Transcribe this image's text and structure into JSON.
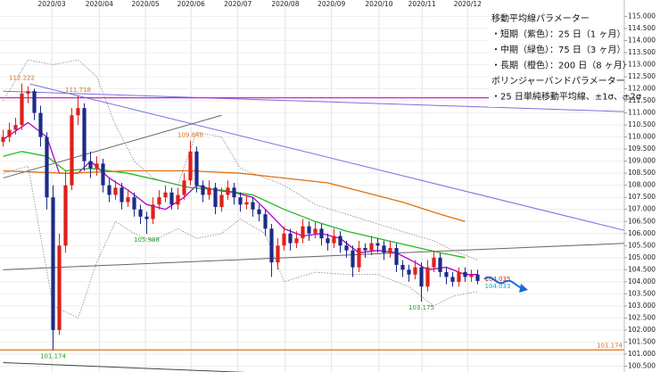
{
  "chart_data": {
    "type": "candlestick",
    "xlim": [
      -0.5,
      99.5
    ],
    "ylim": [
      100.26,
      115.68
    ],
    "grid": true,
    "up_color": "#e0201a",
    "down_color": "#1c2b86",
    "xticks": [
      {
        "value": 7.8,
        "label": "2020/03"
      },
      {
        "value": 15.4,
        "label": "2020/04"
      },
      {
        "value": 22.8,
        "label": "2020/05"
      },
      {
        "value": 30.1,
        "label": "2020/06"
      },
      {
        "value": 37.6,
        "label": "2020/07"
      },
      {
        "value": 45.2,
        "label": "2020/08"
      },
      {
        "value": 52.6,
        "label": "2020/09"
      },
      {
        "value": 60.2,
        "label": "2020/10"
      },
      {
        "value": 67.1,
        "label": "2020/11"
      },
      {
        "value": 74.4,
        "label": "2020/12"
      }
    ],
    "yticks": [
      {
        "value": 100.5,
        "label": "100.500"
      },
      {
        "value": 101,
        "label": "101.000"
      },
      {
        "value": 101.5,
        "label": "101.500"
      },
      {
        "value": 102,
        "label": "102.000"
      },
      {
        "value": 102.5,
        "label": "102.500"
      },
      {
        "value": 103,
        "label": "103.000"
      },
      {
        "value": 103.5,
        "label": "103.500"
      },
      {
        "value": 104,
        "label": "104.000"
      },
      {
        "value": 104.5,
        "label": "104.500"
      },
      {
        "value": 105,
        "label": "105.000"
      },
      {
        "value": 105.5,
        "label": "105.500"
      },
      {
        "value": 106,
        "label": "106.000"
      },
      {
        "value": 106.5,
        "label": "106.500"
      },
      {
        "value": 107,
        "label": "107.000"
      },
      {
        "value": 107.5,
        "label": "107.500"
      },
      {
        "value": 108,
        "label": "108.000"
      },
      {
        "value": 108.5,
        "label": "108.500"
      },
      {
        "value": 109,
        "label": "109.000"
      },
      {
        "value": 109.5,
        "label": "109.500"
      },
      {
        "value": 110,
        "label": "110.000"
      },
      {
        "value": 110.5,
        "label": "110.500"
      },
      {
        "value": 111,
        "label": "111.000"
      },
      {
        "value": 111.5,
        "label": "111.500"
      },
      {
        "value": 112,
        "label": "112.000"
      },
      {
        "value": 112.5,
        "label": "112.500"
      },
      {
        "value": 113,
        "label": "113.000"
      },
      {
        "value": 113.5,
        "label": "113.500"
      },
      {
        "value": 114,
        "label": "114.000"
      },
      {
        "value": 114.5,
        "label": "114.500"
      },
      {
        "value": 115,
        "label": "115.000"
      }
    ],
    "open": [
      109.8,
      110.0,
      110.3,
      110.5,
      111.8,
      111.9,
      111.0,
      110.0,
      107.5,
      102.0,
      105.5,
      108.0,
      110.9,
      111.2,
      109.0,
      108.7,
      108.9,
      108.0,
      107.6,
      107.9,
      107.3,
      107.5,
      107.0,
      106.7,
      106.6,
      107.2,
      107.5,
      107.7,
      107.2,
      107.6,
      108.2,
      109.4,
      108.0,
      107.6,
      107.9,
      107.1,
      107.6,
      107.9,
      107.5,
      107.2,
      107.3,
      107.0,
      106.8,
      106.2,
      104.8,
      105.5,
      106.0,
      105.6,
      105.8,
      106.3,
      106.0,
      106.2,
      105.8,
      105.6,
      105.9,
      105.5,
      105.3,
      104.6,
      105.4,
      105.3,
      105.6,
      105.5,
      105.2,
      105.4,
      104.7,
      104.5,
      104.3,
      104.6,
      103.8,
      104.6,
      105.0,
      104.4,
      104.2,
      104.0,
      104.4,
      104.2,
      104.3
    ],
    "high": [
      110.3,
      110.6,
      110.8,
      112.222,
      112.1,
      112.0,
      111.3,
      110.2,
      108.0,
      106.0,
      108.6,
      111.2,
      111.718,
      111.4,
      109.4,
      109.2,
      109.1,
      108.3,
      108.2,
      108.1,
      107.8,
      107.7,
      107.2,
      106.9,
      107.5,
      107.8,
      108.0,
      107.9,
      107.9,
      108.5,
      109.848,
      109.6,
      108.2,
      108.2,
      108.1,
      107.9,
      108.2,
      108.1,
      107.7,
      107.6,
      107.5,
      107.2,
      107.0,
      106.4,
      105.8,
      106.3,
      106.2,
      106.1,
      106.6,
      106.5,
      106.5,
      106.4,
      106.0,
      106.2,
      106.1,
      105.7,
      105.5,
      105.7,
      105.6,
      105.9,
      105.8,
      105.7,
      105.7,
      105.6,
      104.9,
      104.7,
      104.9,
      104.8,
      104.9,
      105.3,
      105.2,
      104.6,
      104.4,
      104.6,
      104.6,
      104.5,
      104.5
    ],
    "low": [
      109.6,
      109.8,
      110.1,
      110.3,
      111.4,
      110.7,
      109.6,
      107.0,
      101.174,
      101.8,
      105.2,
      107.8,
      110.5,
      108.6,
      108.3,
      108.4,
      107.7,
      107.3,
      107.4,
      107.0,
      107.1,
      106.7,
      106.4,
      105.988,
      106.4,
      107.0,
      107.3,
      107.0,
      107.0,
      107.4,
      108.0,
      107.7,
      107.3,
      107.4,
      106.8,
      106.9,
      107.4,
      107.2,
      106.9,
      107.0,
      106.7,
      106.5,
      105.9,
      104.2,
      104.5,
      105.3,
      105.3,
      105.4,
      105.6,
      105.7,
      105.8,
      105.5,
      105.3,
      105.4,
      105.2,
      105.0,
      104.2,
      104.4,
      105.0,
      105.1,
      105.2,
      104.9,
      105.0,
      104.4,
      104.2,
      104.0,
      104.1,
      103.175,
      103.6,
      104.4,
      104.2,
      103.9,
      103.8,
      103.8,
      104.0,
      104.0,
      103.9
    ],
    "close": [
      110.0,
      110.3,
      110.5,
      111.8,
      111.9,
      111.0,
      110.0,
      107.5,
      102.0,
      105.5,
      108.0,
      110.9,
      111.2,
      109.0,
      108.7,
      108.9,
      108.0,
      107.6,
      107.9,
      107.3,
      107.5,
      107.0,
      106.7,
      106.6,
      107.2,
      107.5,
      107.7,
      107.2,
      107.6,
      108.2,
      109.4,
      108.0,
      107.6,
      107.9,
      107.1,
      107.6,
      107.9,
      107.5,
      107.2,
      107.3,
      107.0,
      106.8,
      106.2,
      104.8,
      105.5,
      106.0,
      105.6,
      105.8,
      106.3,
      106.0,
      106.2,
      105.8,
      105.6,
      105.9,
      105.5,
      105.3,
      104.6,
      105.4,
      105.3,
      105.6,
      105.5,
      105.2,
      105.4,
      104.7,
      104.5,
      104.3,
      104.6,
      103.8,
      104.6,
      105.0,
      104.4,
      104.2,
      104.0,
      104.4,
      104.2,
      104.3,
      104.035
    ],
    "series": [
      {
        "color": "#b000d0",
        "dash": "none",
        "x": [
          0,
          4,
          7,
          9,
          12,
          14,
          17,
          20,
          23,
          26,
          29,
          31,
          34,
          37,
          40,
          42,
          45,
          48,
          51,
          54,
          57,
          60,
          63,
          66,
          68,
          71,
          74,
          76
        ],
        "values": [
          109.9,
          110.6,
          110.0,
          108.5,
          108.5,
          109.0,
          108.3,
          107.8,
          107.2,
          107.0,
          107.5,
          108.0,
          107.8,
          107.7,
          107.5,
          107.0,
          106.2,
          105.9,
          106.0,
          105.8,
          105.2,
          105.3,
          105.2,
          104.8,
          104.5,
          104.6,
          104.3,
          104.3
        ]
      },
      {
        "color": "#22bb22",
        "dash": "none",
        "x": [
          0,
          3,
          7,
          10,
          14,
          20,
          25,
          30,
          35,
          40,
          45,
          50,
          55,
          60,
          65,
          70,
          74
        ],
        "values": [
          109.2,
          109.4,
          109.2,
          108.6,
          108.7,
          108.5,
          108.2,
          107.9,
          107.8,
          107.6,
          107.0,
          106.5,
          106.1,
          105.8,
          105.5,
          105.2,
          105.0
        ]
      },
      {
        "color": "#e07010",
        "dash": "none",
        "x": [
          0,
          10,
          20,
          30,
          38,
          45,
          52,
          58,
          64,
          70,
          74
        ],
        "values": [
          108.6,
          108.5,
          108.6,
          108.6,
          108.5,
          108.3,
          108.1,
          107.7,
          107.3,
          106.8,
          106.5
        ]
      },
      {
        "color": "#888888",
        "dash": "1.5 1.5",
        "x": [
          0,
          4,
          8,
          12,
          15,
          18,
          21,
          24,
          28,
          31,
          35,
          38,
          42,
          45,
          50,
          55,
          60,
          65,
          69,
          72,
          76
        ],
        "values": [
          111.5,
          113.2,
          113.0,
          113.2,
          112.5,
          110.5,
          109.0,
          108.3,
          108.0,
          110.2,
          110.0,
          108.7,
          108.3,
          108.0,
          107.2,
          106.8,
          106.4,
          106.0,
          105.7,
          105.3,
          104.9
        ]
      },
      {
        "color": "#888888",
        "dash": "1.5 1.5",
        "x": [
          0,
          4,
          8,
          12,
          15,
          18,
          21,
          24,
          28,
          31,
          35,
          38,
          42,
          45,
          50,
          55,
          60,
          65,
          69,
          72,
          76
        ],
        "values": [
          108.5,
          108.8,
          103.0,
          102.5,
          104.8,
          106.5,
          106.0,
          105.7,
          106.2,
          105.8,
          106.0,
          106.6,
          106.0,
          104.0,
          104.4,
          104.3,
          104.3,
          103.8,
          103.0,
          103.4,
          103.6
        ]
      }
    ],
    "trendlines": [
      {
        "color": "#7b6fe0",
        "points": [
          [
            4.3,
            112.2
          ],
          [
            100,
            106.1
          ]
        ]
      },
      {
        "color": "#7b6fe0",
        "points": [
          [
            0,
            111.9
          ],
          [
            100,
            111.05
          ]
        ]
      },
      {
        "color": "#666666",
        "points": [
          [
            0,
            108.3
          ],
          [
            35,
            110.9
          ]
        ]
      },
      {
        "color": "#666666",
        "points": [
          [
            0,
            104.5
          ],
          [
            100,
            105.6
          ]
        ]
      },
      {
        "color": "#444444",
        "points": [
          [
            0,
            100.65
          ],
          [
            43,
            100.2
          ]
        ]
      }
    ],
    "hlines": [
      {
        "value": 111.626,
        "label": "111.626",
        "color": "#d020d0"
      },
      {
        "value": 101.174,
        "label": "101.174",
        "color": "#e07010"
      }
    ],
    "annotations": [
      {
        "x": 3,
        "value": 112.222,
        "label": "112.222",
        "color": "#e07010"
      },
      {
        "x": 12,
        "value": 111.718,
        "label": "111.718",
        "color": "#e07010"
      },
      {
        "x": 30,
        "value": 109.848,
        "label": "109.848",
        "color": "#e07010"
      },
      {
        "x": 23,
        "value": 105.988,
        "label": "105.988",
        "color": "#22a022"
      },
      {
        "x": 8,
        "value": 101.174,
        "label": "101.174",
        "color": "#22a022"
      },
      {
        "x": 67,
        "value": 103.175,
        "label": "103.175",
        "color": "#22a022"
      },
      {
        "x": 76,
        "value": 104.035,
        "label": "104.035",
        "color": "#e0201a"
      },
      {
        "x": 76,
        "value": 104.033,
        "label": "104.033",
        "color": "#1aa0c0"
      }
    ],
    "legend_text": [
      "移動平均線パラメーター",
      "・短期（紫色）：25 日（1 ヶ月）",
      "・中期（緑色）：75 日（3 ヶ月）",
      "・長期（橙色）：200 日（8 ヶ月）",
      "ボリンジャーバンドパラメーター",
      "・25 日単純移動平均線、±1σ、±2σ"
    ]
  }
}
